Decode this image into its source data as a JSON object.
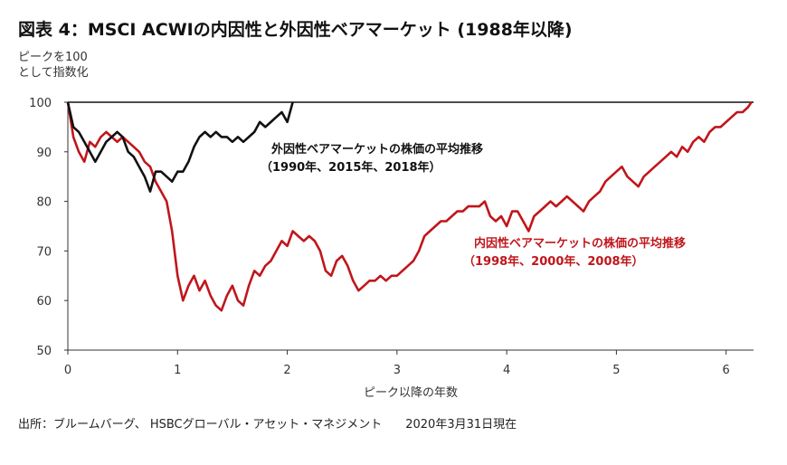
{
  "title": "図表 4：MSCI ACWIの内因性と外因性ベアマーケット (1988年以降)",
  "unit_line1": "ピークを100",
  "unit_line2": "として指数化",
  "source": "出所：ブルームバーグ、 HSBCグローバル・アセット・マネジメント　　2020年3月31日現在",
  "chart_data": {
    "type": "line",
    "xlabel": "ピーク以降の年数",
    "ylabel": "ピークを100として指数化",
    "xlim": [
      0,
      6.25
    ],
    "ylim": [
      50,
      100
    ],
    "xticks": [
      0,
      1,
      2,
      3,
      4,
      5,
      6
    ],
    "yticks": [
      50,
      60,
      70,
      80,
      90,
      100
    ],
    "reference_line": 100,
    "grid": false,
    "series": [
      {
        "name": "外因性ベアマーケットの株価の平均推移",
        "color": "#111111",
        "x": [
          0,
          0.05,
          0.1,
          0.15,
          0.2,
          0.25,
          0.3,
          0.35,
          0.4,
          0.45,
          0.5,
          0.55,
          0.6,
          0.65,
          0.7,
          0.75,
          0.8,
          0.85,
          0.9,
          0.95,
          1.0,
          1.05,
          1.1,
          1.15,
          1.2,
          1.25,
          1.3,
          1.35,
          1.4,
          1.45,
          1.5,
          1.55,
          1.6,
          1.65,
          1.7,
          1.75,
          1.8,
          1.85,
          1.9,
          1.95,
          2.0,
          2.05
        ],
        "values": [
          100,
          95,
          94,
          92,
          90,
          88,
          90,
          92,
          93,
          94,
          93,
          90,
          89,
          87,
          85,
          82,
          86,
          86,
          85,
          84,
          86,
          86,
          88,
          91,
          93,
          94,
          93,
          94,
          93,
          93,
          92,
          93,
          92,
          93,
          94,
          96,
          95,
          96,
          97,
          98,
          96,
          100
        ]
      },
      {
        "name": "内因性ベアマーケットの株価の平均推移",
        "color": "#c0161b",
        "x": [
          0,
          0.05,
          0.1,
          0.15,
          0.2,
          0.25,
          0.3,
          0.35,
          0.4,
          0.45,
          0.5,
          0.55,
          0.6,
          0.65,
          0.7,
          0.75,
          0.8,
          0.85,
          0.9,
          0.95,
          1.0,
          1.05,
          1.1,
          1.15,
          1.2,
          1.25,
          1.3,
          1.35,
          1.4,
          1.45,
          1.5,
          1.55,
          1.6,
          1.65,
          1.7,
          1.75,
          1.8,
          1.85,
          1.9,
          1.95,
          2.0,
          2.05,
          2.1,
          2.15,
          2.2,
          2.25,
          2.3,
          2.35,
          2.4,
          2.45,
          2.5,
          2.55,
          2.6,
          2.65,
          2.7,
          2.75,
          2.8,
          2.85,
          2.9,
          2.95,
          3.0,
          3.05,
          3.1,
          3.15,
          3.2,
          3.25,
          3.3,
          3.35,
          3.4,
          3.45,
          3.5,
          3.55,
          3.6,
          3.65,
          3.7,
          3.75,
          3.8,
          3.85,
          3.9,
          3.95,
          4.0,
          4.05,
          4.1,
          4.15,
          4.2,
          4.25,
          4.3,
          4.35,
          4.4,
          4.45,
          4.5,
          4.55,
          4.6,
          4.65,
          4.7,
          4.75,
          4.8,
          4.85,
          4.9,
          4.95,
          5.0,
          5.05,
          5.1,
          5.15,
          5.2,
          5.25,
          5.3,
          5.35,
          5.4,
          5.45,
          5.5,
          5.55,
          5.6,
          5.65,
          5.7,
          5.75,
          5.8,
          5.85,
          5.9,
          5.95,
          6.0,
          6.05,
          6.1,
          6.15,
          6.2,
          6.23
        ],
        "values": [
          100,
          93,
          90,
          88,
          92,
          91,
          93,
          94,
          93,
          92,
          93,
          92,
          91,
          90,
          88,
          87,
          84,
          82,
          80,
          74,
          65,
          60,
          63,
          65,
          62,
          64,
          61,
          59,
          58,
          61,
          63,
          60,
          59,
          63,
          66,
          65,
          67,
          68,
          70,
          72,
          71,
          74,
          73,
          72,
          73,
          72,
          70,
          66,
          65,
          68,
          69,
          67,
          64,
          62,
          63,
          64,
          64,
          65,
          64,
          65,
          65,
          66,
          67,
          68,
          70,
          73,
          74,
          75,
          76,
          76,
          77,
          78,
          78,
          79,
          79,
          79,
          80,
          77,
          76,
          77,
          75,
          78,
          78,
          76,
          74,
          77,
          78,
          79,
          80,
          79,
          80,
          81,
          80,
          79,
          78,
          80,
          81,
          82,
          84,
          85,
          86,
          87,
          85,
          84,
          83,
          85,
          86,
          87,
          88,
          89,
          90,
          89,
          91,
          90,
          92,
          93,
          92,
          94,
          95,
          95,
          96,
          97,
          98,
          98,
          99,
          100
        ]
      }
    ],
    "annotations": [
      {
        "line1": "外因性ベアマーケットの株価の平均推移",
        "line2": "（1990年、2015年、2018年）",
        "color": "#111111"
      },
      {
        "line1": "内因性ベアマーケットの株価の平均推移",
        "line2": "（1998年、2000年、2008年）",
        "color": "#c0161b"
      }
    ]
  }
}
